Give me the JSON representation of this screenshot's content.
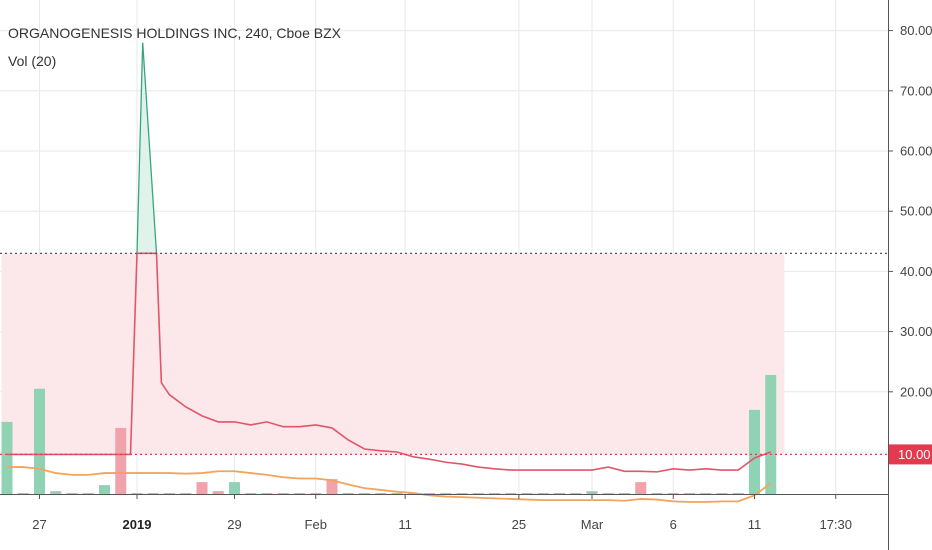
{
  "header": {
    "symbol_line": "ORGANOGENESIS HOLDINGS INC, 240, Cboe BZX",
    "indicator_line": "Vol (20)"
  },
  "price_label": "10.00",
  "colors": {
    "up_bar": "#8fd3b4",
    "down_bar": "#f0a3ab",
    "ma_red": "#e0566a",
    "ma_orange": "#f3a35a",
    "band_fill": "#fce8ea",
    "spike_fill": "#dff3ea",
    "spike_line": "#3aa57c",
    "label_bg": "#e53950",
    "grid": "#e6e9ed"
  },
  "chart_data": {
    "type": "bar",
    "title": "",
    "y_axis": {
      "range": [
        0,
        85
      ],
      "ticks": [
        "10.00",
        "20.00",
        "30.00",
        "40.00",
        "50.00",
        "60.00",
        "70.00",
        "80.00"
      ],
      "tick_values": [
        10,
        20,
        30,
        40,
        50,
        60,
        70,
        80
      ],
      "position": "right"
    },
    "x_axis": {
      "ticks": [
        {
          "label": "27",
          "i": 2,
          "bold": false
        },
        {
          "label": "2019",
          "i": 8,
          "bold": true
        },
        {
          "label": "29",
          "i": 14,
          "bold": false
        },
        {
          "label": "Feb",
          "i": 19,
          "bold": false
        },
        {
          "label": "11",
          "i": 24.5,
          "bold": false
        },
        {
          "label": "25",
          "i": 31.5,
          "bold": false
        },
        {
          "label": "Mar",
          "i": 36,
          "bold": false
        },
        {
          "label": "6",
          "i": 41,
          "bold": false
        },
        {
          "label": "11",
          "i": 46,
          "bold": false
        },
        {
          "label": "17:30",
          "i": 51,
          "bold": false
        }
      ]
    },
    "grid": true,
    "reference_lines": [
      {
        "value": 43,
        "style": "dotted",
        "color": "#555555"
      },
      {
        "value": 9.6,
        "style": "dotted",
        "color": "#e53950"
      }
    ],
    "volume_bars": [
      {
        "i": 0,
        "v": 15,
        "c": "up"
      },
      {
        "i": 1,
        "v": 0.2,
        "c": "up"
      },
      {
        "i": 2,
        "v": 20.5,
        "c": "up"
      },
      {
        "i": 3,
        "v": 3.5,
        "c": "up"
      },
      {
        "i": 4,
        "v": 0.3,
        "c": "up"
      },
      {
        "i": 5,
        "v": 1.5,
        "c": "up"
      },
      {
        "i": 6,
        "v": 4.5,
        "c": "up"
      },
      {
        "i": 7,
        "v": 14,
        "c": "down"
      },
      {
        "i": 8,
        "v": 0.3,
        "c": "up"
      },
      {
        "i": 9,
        "v": 1.2,
        "c": "up"
      },
      {
        "i": 10,
        "v": 0.6,
        "c": "down"
      },
      {
        "i": 11,
        "v": 3,
        "c": "up"
      },
      {
        "i": 12,
        "v": 5,
        "c": "down"
      },
      {
        "i": 13,
        "v": 3.5,
        "c": "down"
      },
      {
        "i": 14,
        "v": 5,
        "c": "up"
      },
      {
        "i": 15,
        "v": 0.3,
        "c": "up"
      },
      {
        "i": 16,
        "v": 1.8,
        "c": "down"
      },
      {
        "i": 17,
        "v": 3,
        "c": "up"
      },
      {
        "i": 18,
        "v": 0.3,
        "c": "up"
      },
      {
        "i": 19,
        "v": 1.6,
        "c": "up"
      },
      {
        "i": 20,
        "v": 5.5,
        "c": "down"
      },
      {
        "i": 21,
        "v": 1.2,
        "c": "up"
      },
      {
        "i": 22,
        "v": 2,
        "c": "down"
      },
      {
        "i": 23,
        "v": 2,
        "c": "down"
      },
      {
        "i": 24,
        "v": 1.8,
        "c": "down"
      },
      {
        "i": 25,
        "v": 1.8,
        "c": "down"
      },
      {
        "i": 26,
        "v": 0.3,
        "c": "up"
      },
      {
        "i": 27,
        "v": 1.8,
        "c": "up"
      },
      {
        "i": 28,
        "v": 1.8,
        "c": "up"
      },
      {
        "i": 29,
        "v": 0.8,
        "c": "up"
      },
      {
        "i": 30,
        "v": 0.3,
        "c": "up"
      },
      {
        "i": 31,
        "v": 0.3,
        "c": "up"
      },
      {
        "i": 32,
        "v": 1.8,
        "c": "down"
      },
      {
        "i": 33,
        "v": 1.8,
        "c": "down"
      },
      {
        "i": 34,
        "v": 1.5,
        "c": "down"
      },
      {
        "i": 35,
        "v": 0.5,
        "c": "up"
      },
      {
        "i": 36,
        "v": 3.5,
        "c": "up"
      },
      {
        "i": 37,
        "v": 2.5,
        "c": "down"
      },
      {
        "i": 38,
        "v": 2.5,
        "c": "down"
      },
      {
        "i": 39,
        "v": 5,
        "c": "down"
      },
      {
        "i": 40,
        "v": 0.3,
        "c": "up"
      },
      {
        "i": 41,
        "v": 0.8,
        "c": "up"
      },
      {
        "i": 42,
        "v": 0.3,
        "c": "up"
      },
      {
        "i": 43,
        "v": 0.3,
        "c": "up"
      },
      {
        "i": 44,
        "v": 0.3,
        "c": "up"
      },
      {
        "i": 45,
        "v": 0.3,
        "c": "up"
      },
      {
        "i": 46,
        "v": 17,
        "c": "up"
      },
      {
        "i": 47,
        "v": 22.8,
        "c": "up"
      }
    ],
    "spike_line": {
      "name": "",
      "points": [
        [
          8,
          43
        ],
        [
          8.35,
          78
        ],
        [
          9.2,
          43
        ]
      ]
    },
    "red_line": {
      "name": "",
      "points": [
        [
          0,
          9.6
        ],
        [
          7.6,
          9.6
        ],
        [
          8,
          43
        ],
        [
          9.2,
          43
        ],
        [
          9.5,
          21.5
        ],
        [
          10,
          19.5
        ],
        [
          11,
          17.5
        ],
        [
          12,
          16
        ],
        [
          13,
          15
        ],
        [
          14,
          15
        ],
        [
          15,
          14.5
        ],
        [
          16,
          15
        ],
        [
          17,
          14.2
        ],
        [
          18,
          14.2
        ],
        [
          19,
          14.5
        ],
        [
          20,
          14
        ],
        [
          21,
          12
        ],
        [
          22,
          10.5
        ],
        [
          23,
          10.2
        ],
        [
          24,
          10
        ],
        [
          25,
          9.2
        ],
        [
          26,
          8.8
        ],
        [
          27,
          8.3
        ],
        [
          28,
          8
        ],
        [
          29,
          7.5
        ],
        [
          30,
          7.2
        ],
        [
          31,
          7
        ],
        [
          32,
          7
        ],
        [
          33,
          7
        ],
        [
          34,
          7
        ],
        [
          35,
          7
        ],
        [
          36,
          7
        ],
        [
          37,
          7.5
        ],
        [
          38,
          6.8
        ],
        [
          39,
          6.8
        ],
        [
          40,
          6.7
        ],
        [
          41,
          7.2
        ],
        [
          42,
          7
        ],
        [
          43,
          7.2
        ],
        [
          44,
          7
        ],
        [
          45,
          7
        ],
        [
          46,
          9
        ],
        [
          47,
          10
        ]
      ]
    },
    "orange_line": {
      "name": "",
      "points": [
        [
          0,
          7.5
        ],
        [
          1,
          7.5
        ],
        [
          2,
          7.2
        ],
        [
          3,
          6.5
        ],
        [
          4,
          6.2
        ],
        [
          5,
          6.2
        ],
        [
          6,
          6.5
        ],
        [
          7,
          6.5
        ],
        [
          8,
          6.5
        ],
        [
          9,
          6.5
        ],
        [
          10,
          6.5
        ],
        [
          11,
          6.4
        ],
        [
          12,
          6.5
        ],
        [
          13,
          6.8
        ],
        [
          14,
          6.8
        ],
        [
          15,
          6.5
        ],
        [
          16,
          6.2
        ],
        [
          17,
          5.8
        ],
        [
          18,
          5.6
        ],
        [
          19,
          5.6
        ],
        [
          20,
          5.3
        ],
        [
          21,
          4.6
        ],
        [
          22,
          4
        ],
        [
          23,
          3.7
        ],
        [
          24,
          3.4
        ],
        [
          25,
          3.2
        ],
        [
          26,
          2.8
        ],
        [
          27,
          2.6
        ],
        [
          28,
          2.5
        ],
        [
          29,
          2.4
        ],
        [
          30,
          2.3
        ],
        [
          31,
          2.2
        ],
        [
          32,
          2.1
        ],
        [
          33,
          2
        ],
        [
          34,
          2
        ],
        [
          35,
          2
        ],
        [
          36,
          2
        ],
        [
          37,
          2
        ],
        [
          38,
          1.9
        ],
        [
          39,
          2.2
        ],
        [
          40,
          2.1
        ],
        [
          41,
          1.8
        ],
        [
          42,
          1.7
        ],
        [
          43,
          1.7
        ],
        [
          44,
          1.8
        ],
        [
          45,
          1.8
        ],
        [
          46,
          2.8
        ],
        [
          47,
          4.8
        ]
      ]
    },
    "band": {
      "from": 9.6,
      "to": 43,
      "x_start": 0,
      "x_end": 47.5
    }
  }
}
